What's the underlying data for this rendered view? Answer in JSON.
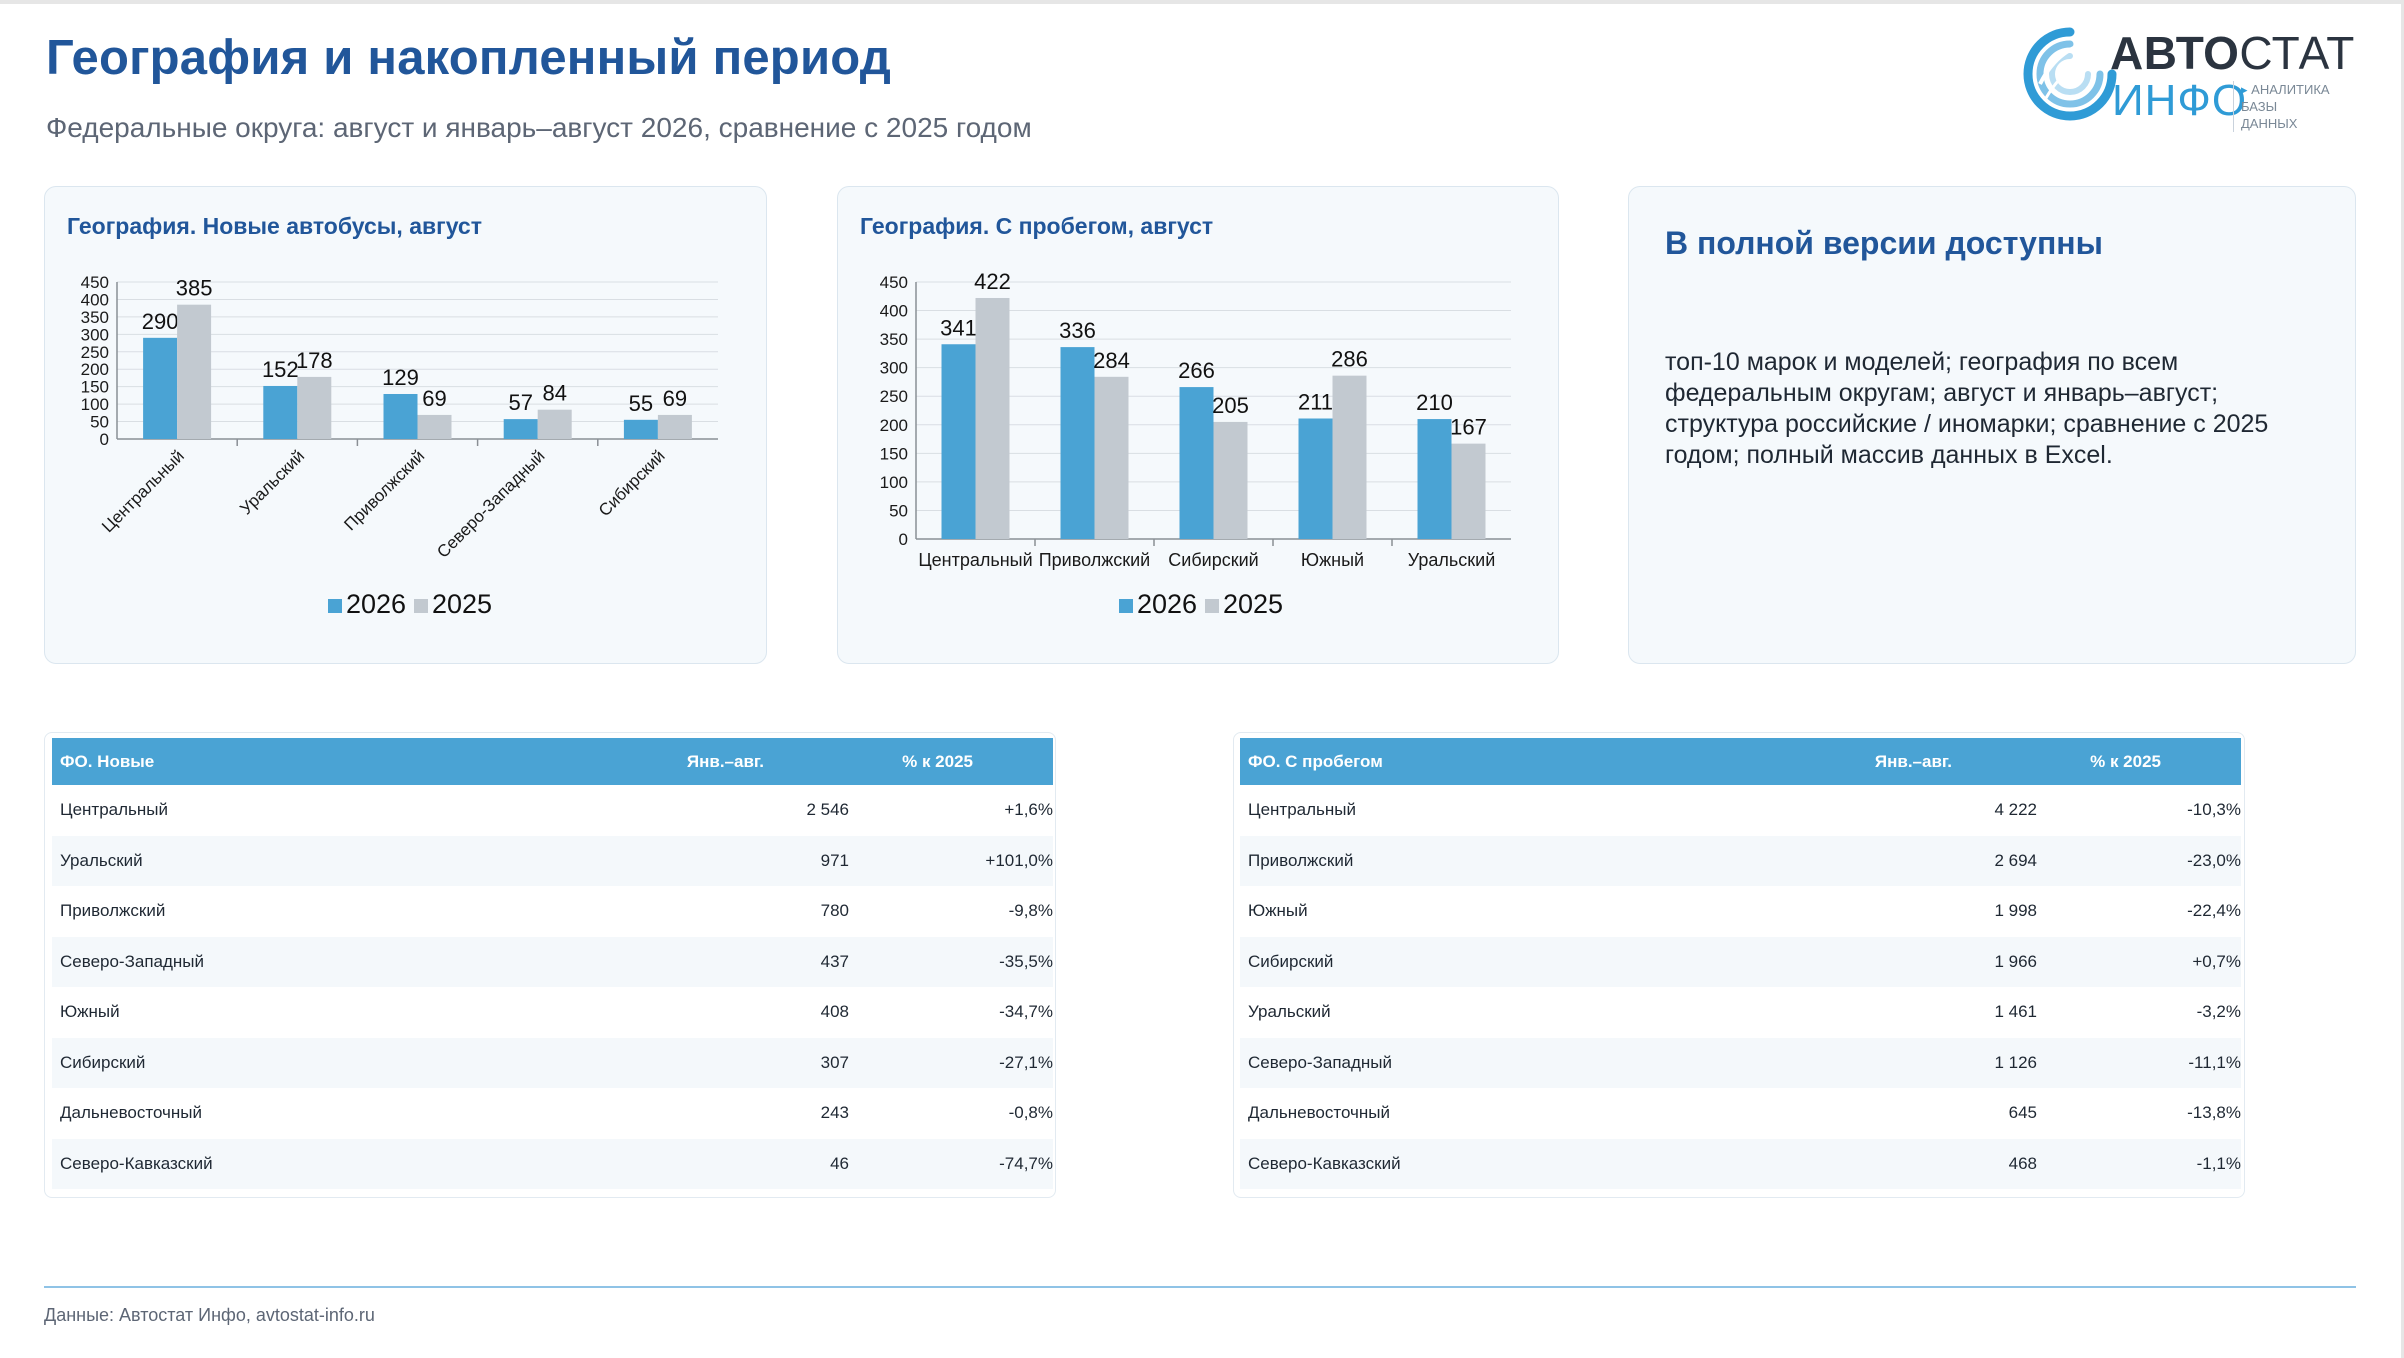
{
  "header": {
    "title": "География и накопленный период",
    "subtitle": "Федеральные округа: август и январь–август 2026, сравнение с 2025 годом"
  },
  "logo": {
    "word1_bold": "АВТО",
    "word1_light": "СТАТ",
    "word2": "ИНФО",
    "tagline1": "АНАЛИТИКА",
    "tagline2": "БАЗЫ ДАННЫХ",
    "icon": "swirl-logo-icon"
  },
  "colors": {
    "primary_series": "#4aa3d4",
    "secondary_series": "#c2c9d0",
    "title_blue": "#21569a",
    "table_header": "#4aa3d4"
  },
  "chart_data": [
    {
      "type": "bar",
      "title": "География. Новые автобусы, август",
      "categories": [
        "Центральный",
        "Уральский",
        "Приволжский",
        "Северо-Западный",
        "Сибирский"
      ],
      "series": [
        {
          "name": "2026",
          "values": [
            290,
            152,
            129,
            57,
            55
          ]
        },
        {
          "name": "2025",
          "values": [
            385,
            178,
            69,
            84,
            69
          ]
        }
      ],
      "ylim": [
        0,
        450
      ],
      "yticks": [
        0,
        50,
        100,
        150,
        200,
        250,
        300,
        350,
        400,
        450
      ],
      "grid": true,
      "legend": "bottom",
      "xlabel_rotation": "rotated"
    },
    {
      "type": "bar",
      "title": "География. С пробегом, август",
      "categories": [
        "Центральный",
        "Приволжский",
        "Сибирский",
        "Южный",
        "Уральский"
      ],
      "series": [
        {
          "name": "2026",
          "values": [
            341,
            336,
            266,
            211,
            210
          ]
        },
        {
          "name": "2025",
          "values": [
            422,
            284,
            205,
            286,
            167
          ]
        }
      ],
      "ylim": [
        0,
        450
      ],
      "yticks": [
        0,
        50,
        100,
        150,
        200,
        250,
        300,
        350,
        400,
        450
      ],
      "grid": true,
      "legend": "bottom",
      "xlabel_rotation": "none"
    }
  ],
  "info": {
    "title": "В полной версии доступны",
    "text": "топ-10 марок и моделей; география по всем федеральным округам; август и январь–август; структура российские / иномарки; сравнение с 2025 годом; полный массив данных в Excel."
  },
  "tables": [
    {
      "headers": [
        "ФО. Новые",
        "Янв.–авг.",
        "% к 2025"
      ],
      "rows": [
        [
          "Центральный",
          "2 546",
          "+1,6%"
        ],
        [
          "Уральский",
          "971",
          "+101,0%"
        ],
        [
          "Приволжский",
          "780",
          "-9,8%"
        ],
        [
          "Северо-Западный",
          "437",
          "-35,5%"
        ],
        [
          "Южный",
          "408",
          "-34,7%"
        ],
        [
          "Сибирский",
          "307",
          "-27,1%"
        ],
        [
          "Дальневосточный",
          "243",
          "-0,8%"
        ],
        [
          "Северо-Кавказский",
          "46",
          "-74,7%"
        ]
      ]
    },
    {
      "headers": [
        "ФО. С пробегом",
        "Янв.–авг.",
        "% к 2025"
      ],
      "rows": [
        [
          "Центральный",
          "4 222",
          "-10,3%"
        ],
        [
          "Приволжский",
          "2 694",
          "-23,0%"
        ],
        [
          "Южный",
          "1 998",
          "-22,4%"
        ],
        [
          "Сибирский",
          "1 966",
          "+0,7%"
        ],
        [
          "Уральский",
          "1 461",
          "-3,2%"
        ],
        [
          "Северо-Западный",
          "1 126",
          "-11,1%"
        ],
        [
          "Дальневосточный",
          "645",
          "-13,8%"
        ],
        [
          "Северо-Кавказский",
          "468",
          "-1,1%"
        ]
      ]
    }
  ],
  "footer": {
    "text": "Данные: Автостат Инфо, avtostat-info.ru"
  }
}
